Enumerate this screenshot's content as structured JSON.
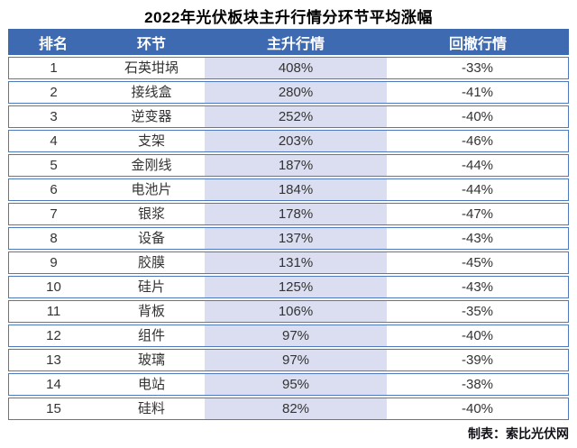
{
  "title": "2022年光伏板块主升行情分环节平均涨幅",
  "footer": {
    "credit": "制表：索比光伏网"
  },
  "colors": {
    "header_bg": "#3e6ab1",
    "header_text": "#ffffff",
    "row_border": "#4f79be",
    "rally_column_bg": "#dadef0",
    "body_text": "#333333"
  },
  "table": {
    "columns": [
      "排名",
      "环节",
      "主升行情",
      "回撤行情"
    ],
    "rows": [
      [
        "1",
        "石英坩埚",
        "408%",
        "-33%"
      ],
      [
        "2",
        "接线盒",
        "280%",
        "-41%"
      ],
      [
        "3",
        "逆变器",
        "252%",
        "-40%"
      ],
      [
        "4",
        "支架",
        "203%",
        "-46%"
      ],
      [
        "5",
        "金刚线",
        "187%",
        "-44%"
      ],
      [
        "6",
        "电池片",
        "184%",
        "-44%"
      ],
      [
        "7",
        "银浆",
        "178%",
        "-47%"
      ],
      [
        "8",
        "设备",
        "137%",
        "-43%"
      ],
      [
        "9",
        "胶膜",
        "131%",
        "-45%"
      ],
      [
        "10",
        "硅片",
        "125%",
        "-43%"
      ],
      [
        "11",
        "背板",
        "106%",
        "-35%"
      ],
      [
        "12",
        "组件",
        "97%",
        "-40%"
      ],
      [
        "13",
        "玻璃",
        "97%",
        "-39%"
      ],
      [
        "14",
        "电站",
        "95%",
        "-38%"
      ],
      [
        "15",
        "硅料",
        "82%",
        "-40%"
      ]
    ]
  },
  "chart_data": {
    "type": "table",
    "title": "2022年光伏板块主升行情分环节平均涨幅",
    "columns": [
      "排名",
      "环节",
      "主升行情",
      "回撤行情"
    ],
    "rows": [
      [
        "1",
        "石英坩埚",
        "408%",
        "-33%"
      ],
      [
        "2",
        "接线盒",
        "280%",
        "-41%"
      ],
      [
        "3",
        "逆变器",
        "252%",
        "-40%"
      ],
      [
        "4",
        "支架",
        "203%",
        "-46%"
      ],
      [
        "5",
        "金刚线",
        "187%",
        "-44%"
      ],
      [
        "6",
        "电池片",
        "184%",
        "-44%"
      ],
      [
        "7",
        "银浆",
        "178%",
        "-47%"
      ],
      [
        "8",
        "设备",
        "137%",
        "-43%"
      ],
      [
        "9",
        "胶膜",
        "131%",
        "-45%"
      ],
      [
        "10",
        "硅片",
        "125%",
        "-43%"
      ],
      [
        "11",
        "背板",
        "106%",
        "-35%"
      ],
      [
        "12",
        "组件",
        "97%",
        "-40%"
      ],
      [
        "13",
        "玻璃",
        "97%",
        "-39%"
      ],
      [
        "14",
        "电站",
        "95%",
        "-38%"
      ],
      [
        "15",
        "硅料",
        "82%",
        "-40%"
      ]
    ],
    "notes": "主升行情 column highlighted lavender; credit 制表：索比光伏网 bottom right"
  }
}
